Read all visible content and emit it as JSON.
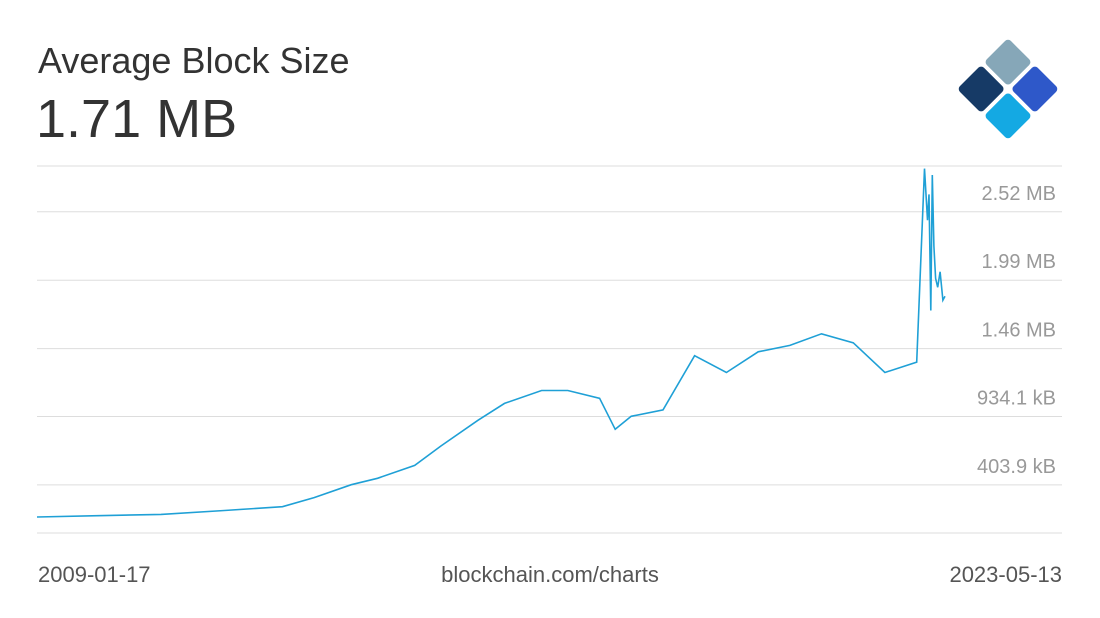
{
  "header": {
    "title": "Average Block Size",
    "current_value": "1.71 MB"
  },
  "footer": {
    "start_date": "2009-01-17",
    "source": "blockchain.com/charts",
    "end_date": "2023-05-13"
  },
  "colors": {
    "line": "#1fa0d6",
    "grid": "#dddddd",
    "tick_text": "#999999"
  },
  "chart_data": {
    "type": "line",
    "xlim": [
      "2009-01-17",
      "2023-05-13"
    ],
    "ylim_mb": [
      0.0,
      2.72
    ],
    "y_ticks": [
      {
        "value": 0.4039,
        "label": "403.9 kB"
      },
      {
        "value": 0.9341,
        "label": "934.1 kB"
      },
      {
        "value": 1.46,
        "label": "1.46 MB"
      },
      {
        "value": 1.99,
        "label": "1.99 MB"
      },
      {
        "value": 2.52,
        "label": "2.52 MB"
      }
    ],
    "series": [
      {
        "x": [
          "2009-01-17",
          "2010-01-01",
          "2011-01-01",
          "2012-01-01",
          "2012-12-01",
          "2013-06-01",
          "2014-01-01",
          "2014-06-01",
          "2015-01-01",
          "2015-06-01",
          "2016-01-01",
          "2016-06-01",
          "2017-01-01",
          "2017-06-01",
          "2017-12-01",
          "2018-03-01",
          "2018-06-01",
          "2018-12-01",
          "2019-06-01",
          "2019-12-01",
          "2020-06-01",
          "2020-12-01",
          "2021-06-01",
          "2021-12-01",
          "2022-06-01",
          "2022-12-01",
          "2023-01-15",
          "2023-02-01",
          "2023-02-10",
          "2023-02-20",
          "2023-03-01",
          "2023-03-10",
          "2023-03-20",
          "2023-04-01",
          "2023-04-15",
          "2023-05-01",
          "2023-05-13"
        ],
        "values": [
          0.0,
          0.01,
          0.02,
          0.05,
          0.08,
          0.15,
          0.25,
          0.3,
          0.4,
          0.55,
          0.75,
          0.88,
          0.98,
          0.98,
          0.92,
          0.68,
          0.78,
          0.83,
          1.25,
          1.12,
          1.28,
          1.33,
          1.42,
          1.35,
          1.12,
          1.2,
          2.7,
          2.3,
          2.5,
          1.6,
          2.65,
          2.1,
          1.85,
          1.78,
          1.9,
          1.68,
          1.71
        ]
      }
    ]
  }
}
